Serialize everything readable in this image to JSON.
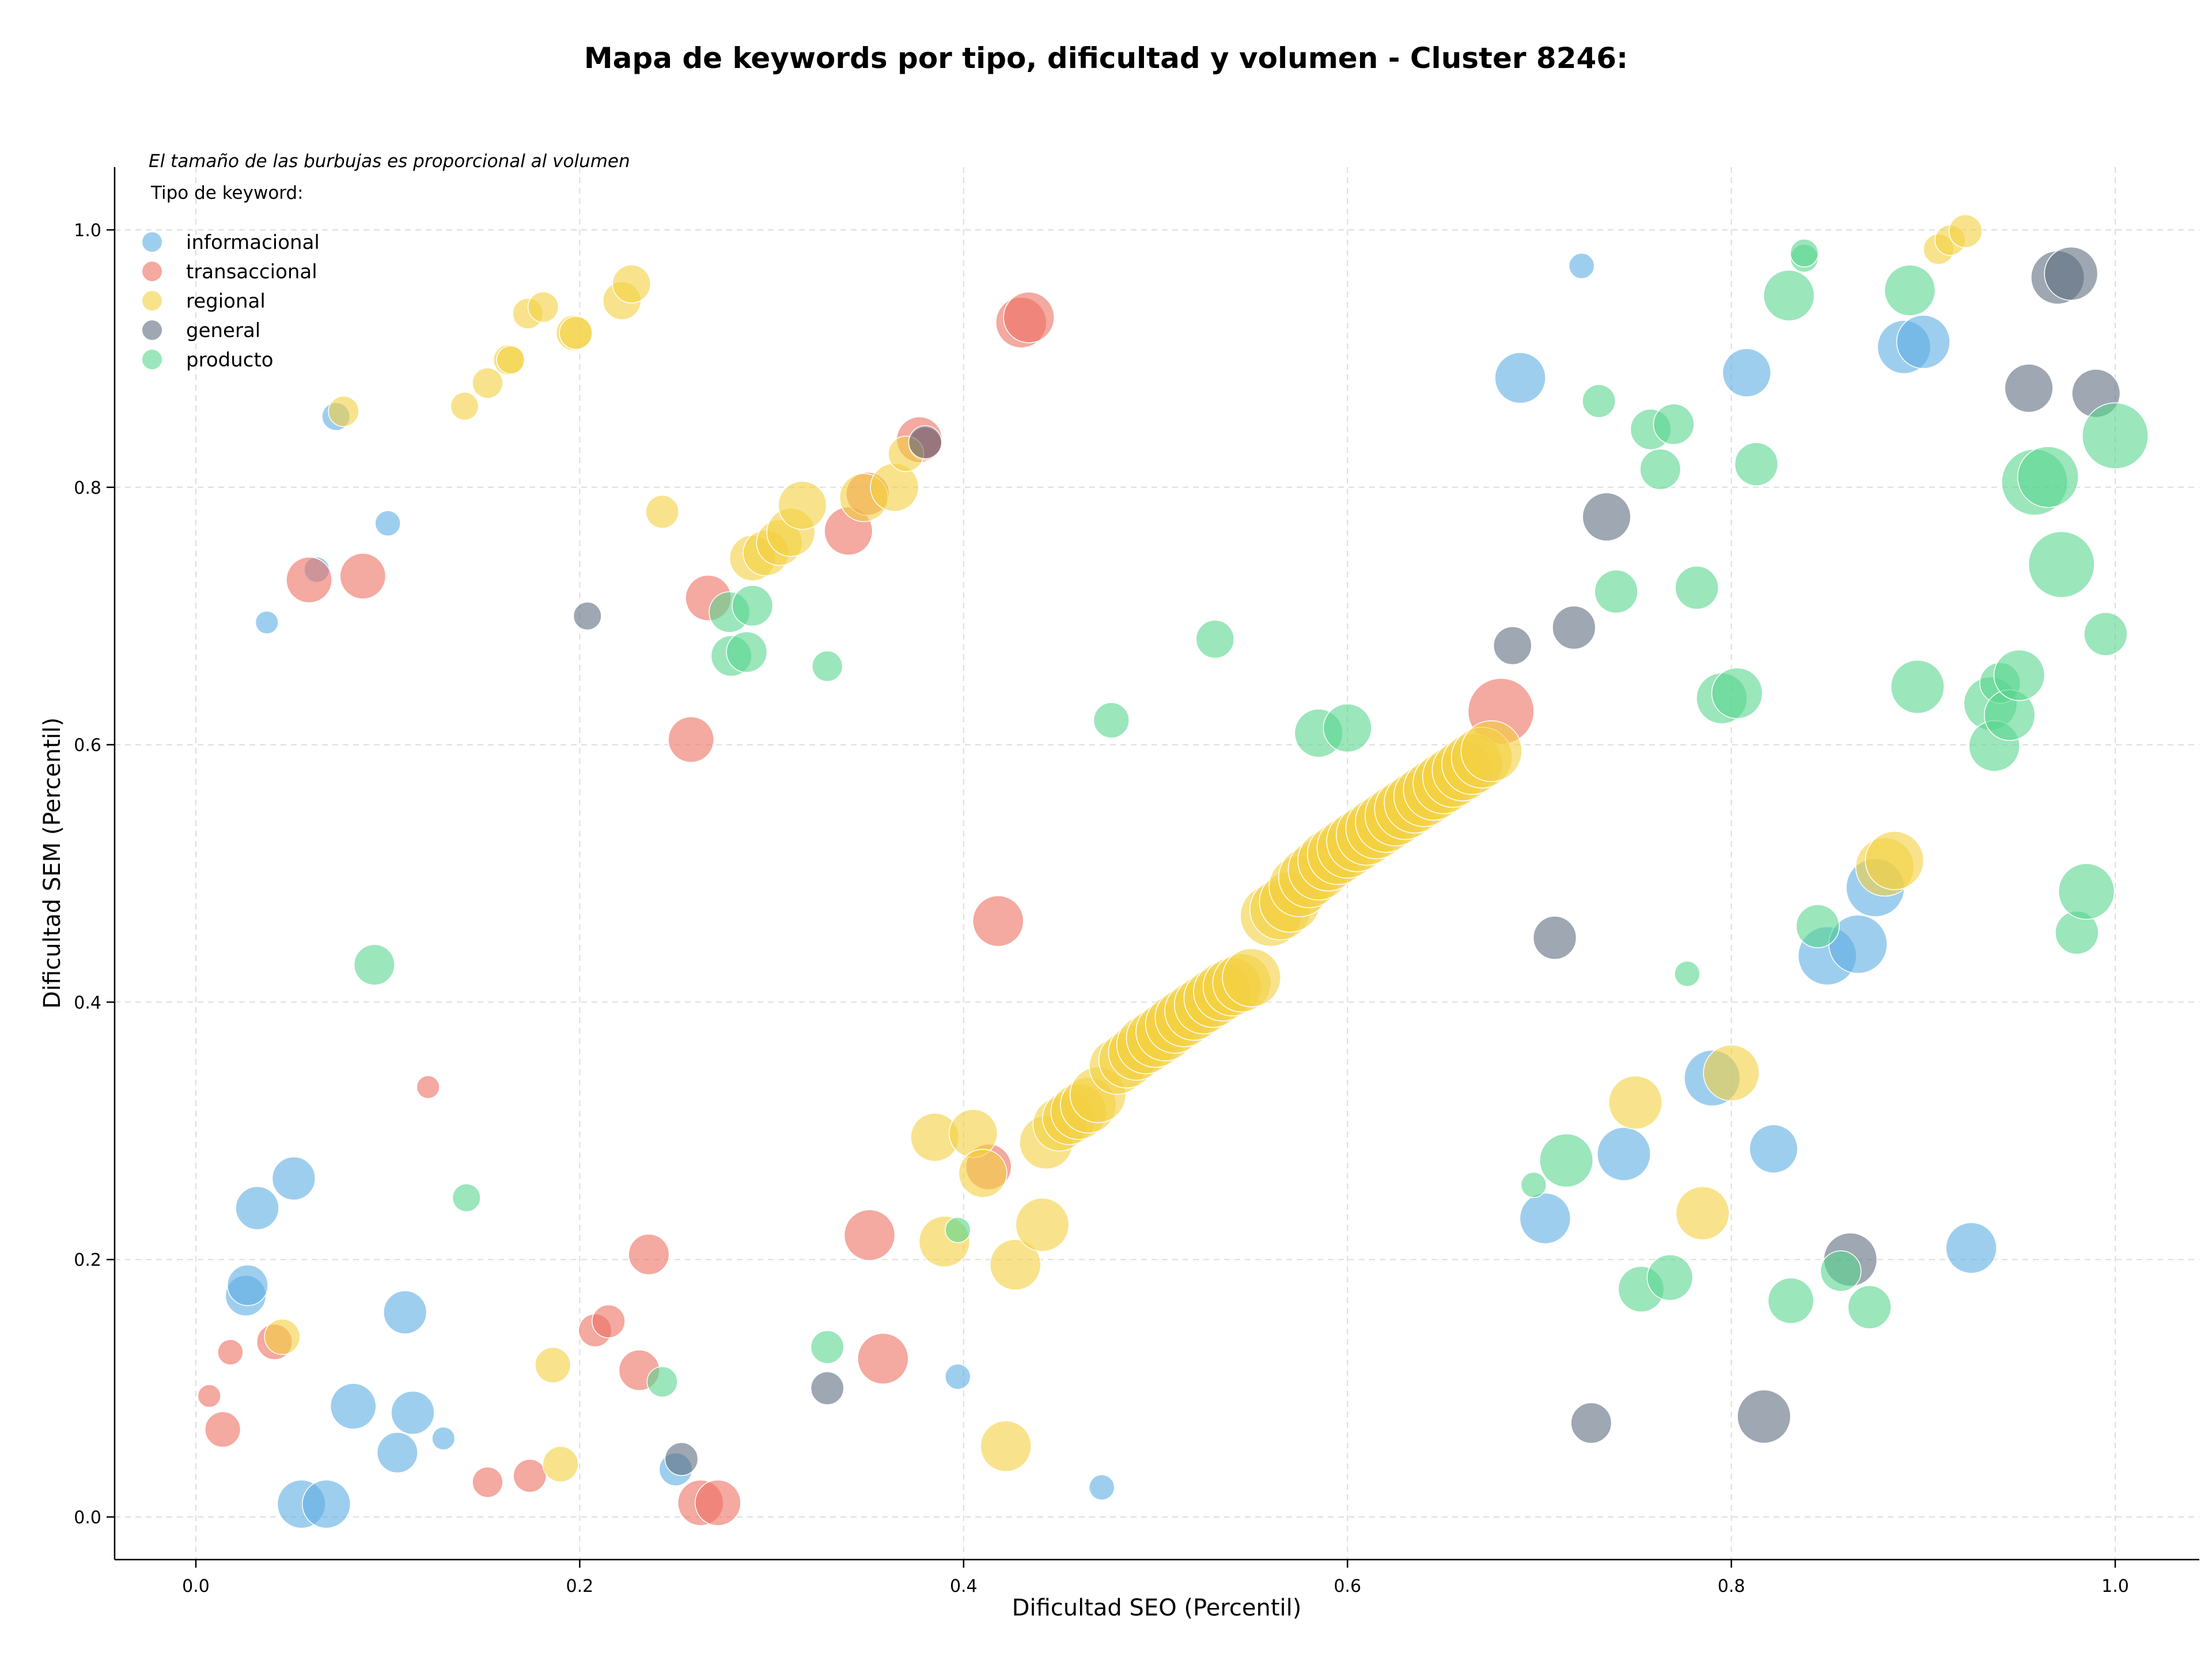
{
  "chart_data": {
    "type": "scatter",
    "title": "Mapa de keywords por tipo, dificultad y volumen - Cluster 8246:",
    "xlabel": "Dificultad SEO (Percentil)",
    "ylabel": "Dificultad SEM (Percentil)",
    "xlim": [
      -0.04,
      1.05
    ],
    "ylim": [
      -0.037,
      1.05
    ],
    "xticks": [
      0.0,
      0.2,
      0.4,
      0.6,
      0.8,
      1.0
    ],
    "yticks": [
      0.0,
      0.2,
      0.4,
      0.6,
      0.8,
      1.0
    ],
    "xtick_labels": [
      "0.0",
      "0.2",
      "0.4",
      "0.6",
      "0.8",
      "1.0"
    ],
    "ytick_labels": [
      "0.0",
      "0.2",
      "0.4",
      "0.6",
      "0.8",
      "1.0"
    ],
    "grid": true,
    "size_note": "El tamaño de las burbujas es proporcional al volumen",
    "legend_title": "Tipo de keyword:",
    "legend_position": "top-left",
    "series": [
      {
        "name": "informacional",
        "color": "#5DADE2",
        "points": [
          [
            0.037,
            0.695,
            0.9
          ],
          [
            0.073,
            0.855,
            1.1
          ],
          [
            0.063,
            0.736,
            1.0
          ],
          [
            0.1,
            0.772,
            1.0
          ],
          [
            0.032,
            0.24,
            1.7
          ],
          [
            0.051,
            0.263,
            1.7
          ],
          [
            0.026,
            0.172,
            1.6
          ],
          [
            0.027,
            0.18,
            1.6
          ],
          [
            0.055,
            0.01,
            1.9
          ],
          [
            0.068,
            0.01,
            1.9
          ],
          [
            0.082,
            0.086,
            1.8
          ],
          [
            0.105,
            0.05,
            1.6
          ],
          [
            0.109,
            0.159,
            1.7
          ],
          [
            0.113,
            0.081,
            1.7
          ],
          [
            0.129,
            0.061,
            0.9
          ],
          [
            0.25,
            0.037,
            1.3
          ],
          [
            0.397,
            0.109,
            1.0
          ],
          [
            0.472,
            0.023,
            1.0
          ],
          [
            0.69,
            0.885,
            2.0
          ],
          [
            0.722,
            0.972,
            1.0
          ],
          [
            0.808,
            0.889,
            1.9
          ],
          [
            0.89,
            0.909,
            2.1
          ],
          [
            0.9,
            0.913,
            2.1
          ],
          [
            0.703,
            0.232,
            2.0
          ],
          [
            0.744,
            0.282,
            2.1
          ],
          [
            0.79,
            0.341,
            2.2
          ],
          [
            0.822,
            0.286,
            1.9
          ],
          [
            0.85,
            0.436,
            2.3
          ],
          [
            0.866,
            0.445,
            2.3
          ],
          [
            0.875,
            0.489,
            2.3
          ],
          [
            0.925,
            0.209,
            2.0
          ]
        ]
      },
      {
        "name": "transaccional",
        "color": "#EC7063",
        "points": [
          [
            0.059,
            0.728,
            1.8
          ],
          [
            0.087,
            0.731,
            1.8
          ],
          [
            0.018,
            0.128,
            1.0
          ],
          [
            0.041,
            0.136,
            1.4
          ],
          [
            0.007,
            0.094,
            0.9
          ],
          [
            0.014,
            0.068,
            1.4
          ],
          [
            0.121,
            0.334,
            0.9
          ],
          [
            0.152,
            0.027,
            1.2
          ],
          [
            0.174,
            0.032,
            1.3
          ],
          [
            0.208,
            0.145,
            1.3
          ],
          [
            0.215,
            0.152,
            1.3
          ],
          [
            0.231,
            0.114,
            1.6
          ],
          [
            0.236,
            0.204,
            1.6
          ],
          [
            0.258,
            0.604,
            1.8
          ],
          [
            0.267,
            0.714,
            1.8
          ],
          [
            0.263,
            0.011,
            1.8
          ],
          [
            0.272,
            0.011,
            1.8
          ],
          [
            0.34,
            0.766,
            1.9
          ],
          [
            0.351,
            0.219,
            2.0
          ],
          [
            0.358,
            0.123,
            2.0
          ],
          [
            0.35,
            0.795,
            1.7
          ],
          [
            0.377,
            0.837,
            1.8
          ],
          [
            0.38,
            0.834,
            1.3
          ],
          [
            0.43,
            0.928,
            2.0
          ],
          [
            0.434,
            0.932,
            2.0
          ],
          [
            0.418,
            0.463,
            2.0
          ],
          [
            0.413,
            0.272,
            1.8
          ],
          [
            0.68,
            0.626,
            2.6
          ]
        ]
      },
      {
        "name": "regional",
        "color": "#F4D03F",
        "points": [
          [
            0.077,
            0.859,
            1.2
          ],
          [
            0.14,
            0.863,
            1.1
          ],
          [
            0.152,
            0.881,
            1.2
          ],
          [
            0.163,
            0.899,
            1.2
          ],
          [
            0.164,
            0.899,
            1.1
          ],
          [
            0.173,
            0.935,
            1.2
          ],
          [
            0.181,
            0.94,
            1.2
          ],
          [
            0.197,
            0.92,
            1.4
          ],
          [
            0.198,
            0.92,
            1.3
          ],
          [
            0.222,
            0.945,
            1.5
          ],
          [
            0.227,
            0.958,
            1.5
          ],
          [
            0.243,
            0.781,
            1.3
          ],
          [
            0.045,
            0.14,
            1.4
          ],
          [
            0.186,
            0.118,
            1.4
          ],
          [
            0.19,
            0.041,
            1.4
          ],
          [
            0.385,
            0.295,
            1.9
          ],
          [
            0.39,
            0.214,
            2.0
          ],
          [
            0.405,
            0.298,
            1.9
          ],
          [
            0.41,
            0.267,
            1.9
          ],
          [
            0.422,
            0.055,
            2.0
          ],
          [
            0.427,
            0.196,
            2.0
          ],
          [
            0.441,
            0.227,
            2.1
          ],
          [
            0.443,
            0.291,
            2.1
          ],
          [
            0.29,
            0.745,
            1.8
          ],
          [
            0.297,
            0.749,
            1.8
          ],
          [
            0.304,
            0.757,
            1.8
          ],
          [
            0.31,
            0.765,
            1.9
          ],
          [
            0.316,
            0.786,
            1.9
          ],
          [
            0.348,
            0.792,
            1.9
          ],
          [
            0.364,
            0.8,
            1.9
          ],
          [
            0.37,
            0.826,
            1.4
          ],
          [
            0.45,
            0.305,
            2.1
          ],
          [
            0.455,
            0.31,
            2.1
          ],
          [
            0.46,
            0.315,
            2.2
          ],
          [
            0.465,
            0.32,
            2.2
          ],
          [
            0.47,
            0.328,
            2.2
          ],
          [
            0.48,
            0.35,
            2.2
          ],
          [
            0.485,
            0.355,
            2.2
          ],
          [
            0.49,
            0.361,
            2.2
          ],
          [
            0.495,
            0.367,
            2.3
          ],
          [
            0.5,
            0.372,
            2.3
          ],
          [
            0.505,
            0.377,
            2.3
          ],
          [
            0.51,
            0.383,
            2.3
          ],
          [
            0.515,
            0.388,
            2.3
          ],
          [
            0.52,
            0.393,
            2.3
          ],
          [
            0.525,
            0.398,
            2.3
          ],
          [
            0.53,
            0.403,
            2.3
          ],
          [
            0.535,
            0.408,
            2.3
          ],
          [
            0.54,
            0.412,
            2.3
          ],
          [
            0.545,
            0.415,
            2.3
          ],
          [
            0.55,
            0.419,
            2.3
          ],
          [
            0.56,
            0.467,
            2.4
          ],
          [
            0.565,
            0.472,
            2.4
          ],
          [
            0.57,
            0.478,
            2.4
          ],
          [
            0.575,
            0.49,
            2.4
          ],
          [
            0.58,
            0.497,
            2.4
          ],
          [
            0.585,
            0.503,
            2.4
          ],
          [
            0.59,
            0.51,
            2.4
          ],
          [
            0.595,
            0.515,
            2.4
          ],
          [
            0.6,
            0.52,
            2.4
          ],
          [
            0.605,
            0.525,
            2.4
          ],
          [
            0.61,
            0.53,
            2.4
          ],
          [
            0.615,
            0.535,
            2.4
          ],
          [
            0.62,
            0.54,
            2.4
          ],
          [
            0.625,
            0.545,
            2.4
          ],
          [
            0.63,
            0.55,
            2.4
          ],
          [
            0.635,
            0.555,
            2.4
          ],
          [
            0.64,
            0.56,
            2.4
          ],
          [
            0.645,
            0.565,
            2.4
          ],
          [
            0.65,
            0.57,
            2.4
          ],
          [
            0.655,
            0.575,
            2.4
          ],
          [
            0.66,
            0.58,
            2.4
          ],
          [
            0.665,
            0.585,
            2.4
          ],
          [
            0.67,
            0.59,
            2.4
          ],
          [
            0.675,
            0.595,
            2.4
          ],
          [
            0.75,
            0.322,
            2.1
          ],
          [
            0.785,
            0.236,
            2.1
          ],
          [
            0.8,
            0.345,
            2.2
          ],
          [
            0.88,
            0.505,
            2.3
          ],
          [
            0.885,
            0.51,
            2.3
          ],
          [
            0.908,
            0.985,
            1.2
          ],
          [
            0.914,
            0.992,
            1.2
          ],
          [
            0.922,
            0.999,
            1.3
          ]
        ]
      },
      {
        "name": "general",
        "color": "#5D6D7E",
        "points": [
          [
            0.204,
            0.7,
            1.1
          ],
          [
            0.253,
            0.045,
            1.3
          ],
          [
            0.329,
            0.1,
            1.3
          ],
          [
            0.38,
            0.835,
            1.3
          ],
          [
            0.686,
            0.677,
            1.5
          ],
          [
            0.708,
            0.45,
            1.7
          ],
          [
            0.718,
            0.691,
            1.7
          ],
          [
            0.735,
            0.777,
            1.9
          ],
          [
            0.727,
            0.073,
            1.6
          ],
          [
            0.817,
            0.078,
            2.1
          ],
          [
            0.862,
            0.2,
            2.1
          ],
          [
            0.955,
            0.877,
            1.9
          ],
          [
            0.97,
            0.963,
            2.1
          ],
          [
            0.977,
            0.966,
            2.1
          ],
          [
            0.99,
            0.873,
            1.9
          ]
        ]
      },
      {
        "name": "producto",
        "color": "#58D68D",
        "points": [
          [
            0.093,
            0.429,
            1.6
          ],
          [
            0.141,
            0.248,
            1.1
          ],
          [
            0.243,
            0.105,
            1.2
          ],
          [
            0.329,
            0.661,
            1.2
          ],
          [
            0.329,
            0.132,
            1.3
          ],
          [
            0.279,
            0.669,
            1.6
          ],
          [
            0.287,
            0.672,
            1.6
          ],
          [
            0.278,
            0.703,
            1.6
          ],
          [
            0.29,
            0.708,
            1.6
          ],
          [
            0.397,
            0.223,
            1.0
          ],
          [
            0.477,
            0.619,
            1.4
          ],
          [
            0.531,
            0.682,
            1.5
          ],
          [
            0.585,
            0.609,
            1.9
          ],
          [
            0.6,
            0.613,
            1.9
          ],
          [
            0.697,
            0.258,
            1.0
          ],
          [
            0.714,
            0.277,
            2.1
          ],
          [
            0.731,
            0.867,
            1.3
          ],
          [
            0.74,
            0.719,
            1.7
          ],
          [
            0.753,
            0.177,
            1.8
          ],
          [
            0.758,
            0.845,
            1.6
          ],
          [
            0.763,
            0.814,
            1.6
          ],
          [
            0.768,
            0.186,
            1.8
          ],
          [
            0.77,
            0.849,
            1.6
          ],
          [
            0.777,
            0.422,
            1.0
          ],
          [
            0.782,
            0.722,
            1.7
          ],
          [
            0.795,
            0.636,
            2.0
          ],
          [
            0.803,
            0.64,
            2.0
          ],
          [
            0.813,
            0.818,
            1.7
          ],
          [
            0.831,
            0.168,
            1.8
          ],
          [
            0.83,
            0.949,
            2.0
          ],
          [
            0.838,
            0.978,
            1.1
          ],
          [
            0.838,
            0.982,
            1.1
          ],
          [
            0.845,
            0.459,
            1.7
          ],
          [
            0.857,
            0.191,
            1.6
          ],
          [
            0.872,
            0.163,
            1.7
          ],
          [
            0.893,
            0.953,
            2.0
          ],
          [
            0.897,
            0.645,
            2.1
          ],
          [
            0.935,
            0.632,
            2.1
          ],
          [
            0.937,
            0.599,
            2.0
          ],
          [
            0.94,
            0.648,
            1.6
          ],
          [
            0.945,
            0.623,
            2.0
          ],
          [
            0.95,
            0.654,
            2.0
          ],
          [
            0.958,
            0.804,
            2.6
          ],
          [
            0.965,
            0.808,
            2.4
          ],
          [
            0.972,
            0.74,
            2.6
          ],
          [
            0.98,
            0.454,
            1.7
          ],
          [
            0.985,
            0.486,
            2.2
          ],
          [
            0.995,
            0.686,
            1.7
          ],
          [
            1.0,
            0.84,
            2.6
          ]
        ]
      }
    ]
  }
}
